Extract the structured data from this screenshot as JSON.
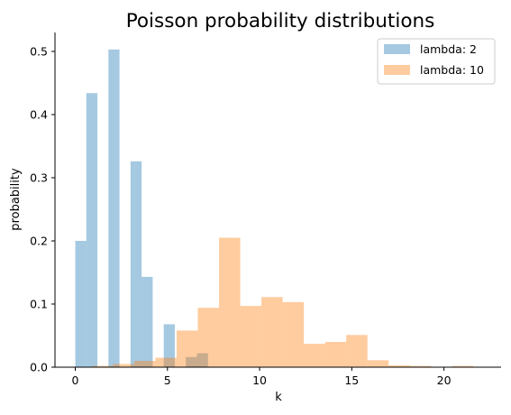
{
  "chart_data": {
    "type": "bar",
    "title": "Poisson probability distributions",
    "xlabel": "k",
    "ylabel": "probability",
    "xlim": [
      -1.1,
      23.1
    ],
    "ylim": [
      0,
      0.53
    ],
    "xticks": [
      0,
      5,
      10,
      15,
      20
    ],
    "yticks": [
      0.0,
      0.1,
      0.2,
      0.3,
      0.4,
      0.5
    ],
    "grid": false,
    "legend_placement": "top-right",
    "series": [
      {
        "name": "lambda: 2",
        "color": "#1f77b4",
        "alpha": 0.4,
        "bins": [
          {
            "x0": 0.0,
            "x1": 0.6,
            "value": 0.2
          },
          {
            "x0": 0.6,
            "x1": 1.2,
            "value": 0.434
          },
          {
            "x0": 1.8,
            "x1": 2.4,
            "value": 0.503
          },
          {
            "x0": 3.0,
            "x1": 3.6,
            "value": 0.326
          },
          {
            "x0": 3.6,
            "x1": 4.2,
            "value": 0.143
          },
          {
            "x0": 4.8,
            "x1": 5.4,
            "value": 0.068
          },
          {
            "x0": 6.0,
            "x1": 6.6,
            "value": 0.016
          },
          {
            "x0": 6.6,
            "x1": 7.2,
            "value": 0.022
          }
        ]
      },
      {
        "name": "lambda: 10",
        "color": "#ff7f0e",
        "alpha": 0.4,
        "bins": [
          {
            "x0": 0.9,
            "x1": 2.05,
            "value": 0.002
          },
          {
            "x0": 2.05,
            "x1": 3.2,
            "value": 0.005
          },
          {
            "x0": 3.2,
            "x1": 4.35,
            "value": 0.01
          },
          {
            "x0": 4.35,
            "x1": 5.5,
            "value": 0.015
          },
          {
            "x0": 5.5,
            "x1": 6.65,
            "value": 0.058
          },
          {
            "x0": 6.65,
            "x1": 7.8,
            "value": 0.094
          },
          {
            "x0": 7.8,
            "x1": 8.95,
            "value": 0.205
          },
          {
            "x0": 8.95,
            "x1": 10.1,
            "value": 0.097
          },
          {
            "x0": 10.1,
            "x1": 11.25,
            "value": 0.111
          },
          {
            "x0": 11.25,
            "x1": 12.4,
            "value": 0.103
          },
          {
            "x0": 12.4,
            "x1": 13.55,
            "value": 0.037
          },
          {
            "x0": 13.55,
            "x1": 14.7,
            "value": 0.04
          },
          {
            "x0": 14.7,
            "x1": 15.85,
            "value": 0.051
          },
          {
            "x0": 15.85,
            "x1": 17.0,
            "value": 0.011
          },
          {
            "x0": 17.0,
            "x1": 18.15,
            "value": 0.003
          },
          {
            "x0": 18.15,
            "x1": 19.3,
            "value": 0.002
          },
          {
            "x0": 20.45,
            "x1": 21.6,
            "value": 0.002
          }
        ]
      }
    ]
  }
}
